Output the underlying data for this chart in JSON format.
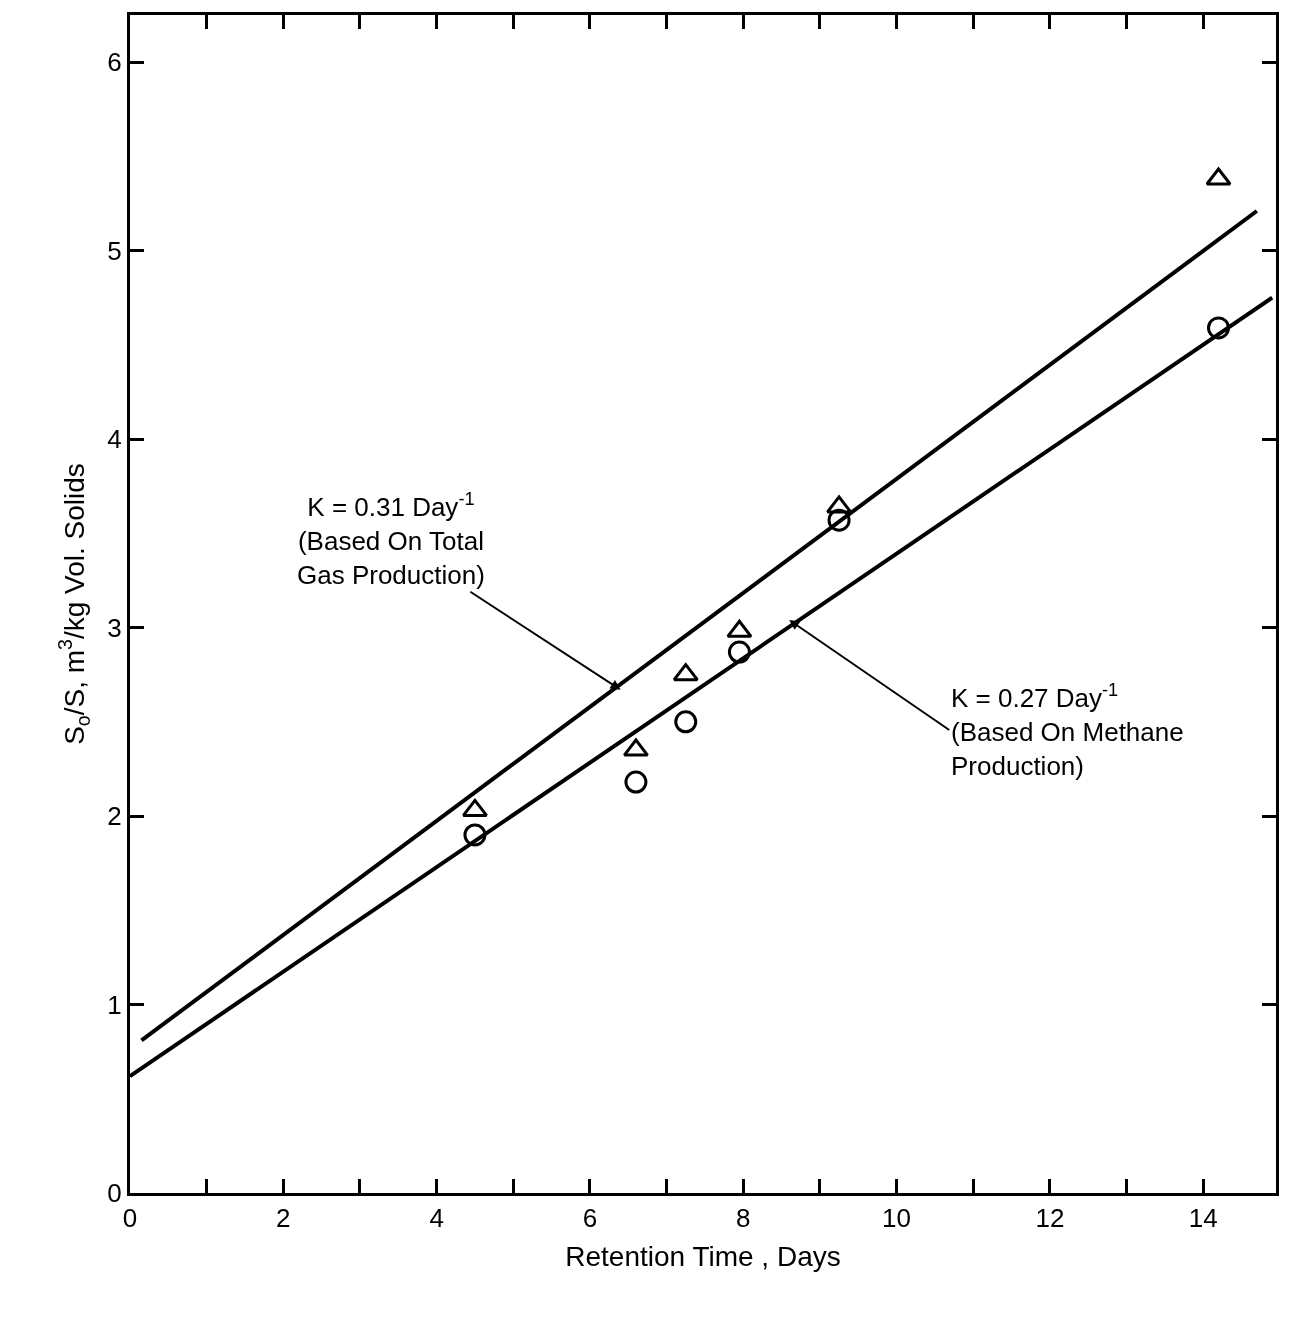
{
  "chart_data": {
    "type": "scatter",
    "xlabel": "Retention Time , Days",
    "ylabel": "S$_{o}$/S, m$^{3}$/kg Vol. Solids",
    "xlim": [
      0,
      14.95
    ],
    "ylim": [
      0,
      6.25
    ],
    "xticks": [
      0,
      {
        "value": 1,
        "label": null
      },
      2,
      {
        "value": 3,
        "label": null
      },
      4,
      {
        "value": 5,
        "label": null
      },
      6,
      {
        "value": 7,
        "label": null
      },
      8,
      {
        "value": 9,
        "label": null
      },
      10,
      {
        "value": 11,
        "label": null
      },
      12,
      {
        "value": 13,
        "label": null
      },
      14
    ],
    "yticks": [
      0,
      1,
      2,
      3,
      4,
      5,
      6
    ],
    "legend": false,
    "series": [
      {
        "marker": "triangle",
        "color": "#000000",
        "x": [
          4.5,
          6.6,
          7.25,
          7.95,
          9.25,
          14.2
        ],
        "values": [
          2.03,
          2.35,
          2.75,
          2.98,
          3.64,
          5.38
        ]
      },
      {
        "marker": "circle",
        "color": "#000000",
        "x": [
          4.5,
          6.6,
          7.25,
          7.95,
          9.25,
          14.2
        ],
        "values": [
          1.9,
          2.18,
          2.5,
          2.87,
          3.57,
          4.59
        ]
      },
      {
        "type": "line",
        "marker": "none",
        "line_style": "solid",
        "color": "#000000",
        "x": [
          0.15,
          14.7
        ],
        "values": [
          0.81,
          5.21
        ]
      },
      {
        "type": "line",
        "marker": "none",
        "line_style": "solid",
        "color": "#000000",
        "x": [
          0,
          14.9
        ],
        "values": [
          0.62,
          4.75
        ]
      }
    ],
    "annotations": [
      {
        "text": "K = 0.31 Day$^{-1}$\n(Based On Total\nGas Production)",
        "x": 6.4,
        "y": 2.67
      },
      {
        "text": "K = 0.27 Day$^{-1}$\n(Based On Methane\nProduction)",
        "x": 8.6,
        "y": 3.04
      }
    ]
  }
}
